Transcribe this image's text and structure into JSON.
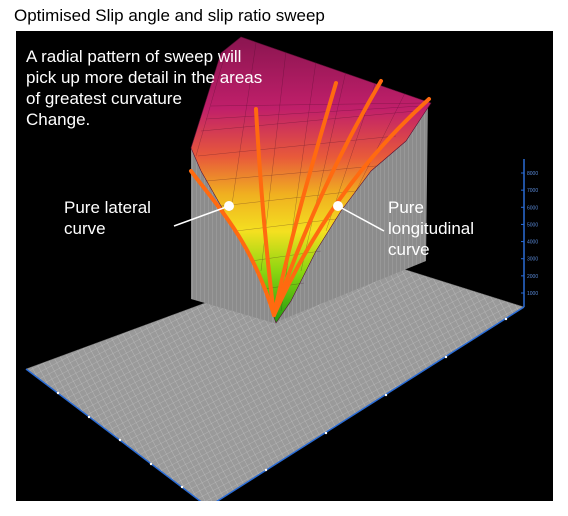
{
  "title": "Optimised Slip angle and slip ratio sweep",
  "note_lines": [
    "A radial pattern of sweep will",
    "pick up more detail in the areas",
    "of greatest curvature",
    "Change."
  ],
  "lateral_label_lines": [
    "Pure lateral",
    "curve"
  ],
  "longitudinal_label_lines": [
    "Pure",
    "longitudinal",
    "curve"
  ],
  "axis_ticks": [
    "8000",
    "7000",
    "6000",
    "5000",
    "4000",
    "3000",
    "2000",
    "1000"
  ],
  "colors": {
    "background": "#000000",
    "grid_surface": "#9a9a9a",
    "surface_top": "#b0206a",
    "surface_mid": "#e8d020",
    "surface_low": "#1e9a10",
    "sweep_curves": "#ff6a10",
    "axis": "#2a6cd6"
  }
}
